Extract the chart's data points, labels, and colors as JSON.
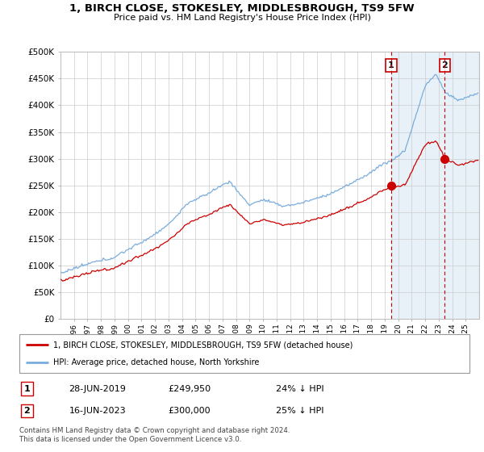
{
  "title": "1, BIRCH CLOSE, STOKESLEY, MIDDLESBROUGH, TS9 5FW",
  "subtitle": "Price paid vs. HM Land Registry's House Price Index (HPI)",
  "ylim": [
    0,
    500000
  ],
  "yticks": [
    0,
    50000,
    100000,
    150000,
    200000,
    250000,
    300000,
    350000,
    400000,
    450000,
    500000
  ],
  "ytick_labels": [
    "£0",
    "£50K",
    "£100K",
    "£150K",
    "£200K",
    "£250K",
    "£300K",
    "£350K",
    "£400K",
    "£450K",
    "£500K"
  ],
  "xlim_start": 1995.0,
  "xlim_end": 2026.0,
  "hpi_color": "#7aaddc",
  "price_color": "#cc0000",
  "sale1_date": 2019.49,
  "sale1_price": 249950,
  "sale2_date": 2023.46,
  "sale2_price": 300000,
  "legend_entry1": "1, BIRCH CLOSE, STOKESLEY, MIDDLESBROUGH, TS9 5FW (detached house)",
  "legend_entry2": "HPI: Average price, detached house, North Yorkshire",
  "table_row1": [
    "1",
    "28-JUN-2019",
    "£249,950",
    "24% ↓ HPI"
  ],
  "table_row2": [
    "2",
    "16-JUN-2023",
    "£300,000",
    "25% ↓ HPI"
  ],
  "footer": "Contains HM Land Registry data © Crown copyright and database right 2024.\nThis data is licensed under the Open Government Licence v3.0.",
  "grid_color": "#cccccc",
  "vline_color": "#cc0000",
  "shade_color": "#cce0f0"
}
